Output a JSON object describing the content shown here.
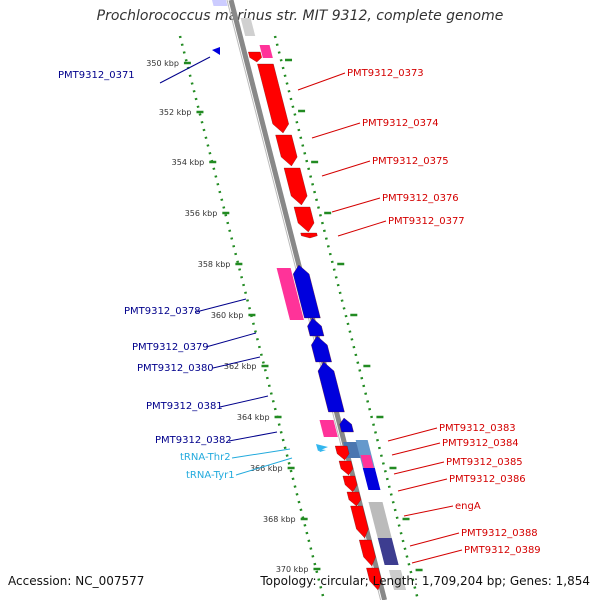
{
  "title": "Prochlorococcus marinus str. MIT 9312, complete genome",
  "footer": {
    "accession": "Accession: NC_007577",
    "topology": "Topology: circular; Length: 1,709,204 bp; Genes: 1,854"
  },
  "colors": {
    "forward": "#ff0000",
    "reverse": "#0000dd",
    "rna": "#33b6ee",
    "gc_pink": "#ff3399",
    "grey": "#c0c0c0",
    "backbone": "#888888",
    "dots": "#228b22"
  },
  "ruler": {
    "unit": "kbp",
    "ticks": [
      {
        "label": "350 kbp"
      },
      {
        "label": "352 kbp"
      },
      {
        "label": "354 kbp"
      },
      {
        "label": "356 kbp"
      },
      {
        "label": "358 kbp"
      },
      {
        "label": "360 kbp"
      },
      {
        "label": "362 kbp"
      },
      {
        "label": "364 kbp"
      },
      {
        "label": "366 kbp"
      },
      {
        "label": "368 kbp"
      },
      {
        "label": "370 kbp"
      }
    ]
  },
  "genes_forward": [
    {
      "label": "PMT9312_0373"
    },
    {
      "label": "PMT9312_0374"
    },
    {
      "label": "PMT9312_0375"
    },
    {
      "label": "PMT9312_0376"
    },
    {
      "label": "PMT9312_0377"
    },
    {
      "label": "PMT9312_0383"
    },
    {
      "label": "PMT9312_0384"
    },
    {
      "label": "PMT9312_0385"
    },
    {
      "label": "PMT9312_0386"
    },
    {
      "label": "engA"
    },
    {
      "label": "PMT9312_0388"
    },
    {
      "label": "PMT9312_0389"
    }
  ],
  "genes_reverse": [
    {
      "label": "PMT9312_0371"
    },
    {
      "label": "PMT9312_0378"
    },
    {
      "label": "PMT9312_0379"
    },
    {
      "label": "PMT9312_0380"
    },
    {
      "label": "PMT9312_0381"
    },
    {
      "label": "PMT9312_0382"
    }
  ],
  "rna_genes": [
    {
      "label": "tRNA-Thr2"
    },
    {
      "label": "tRNA-Tyr1"
    }
  ]
}
